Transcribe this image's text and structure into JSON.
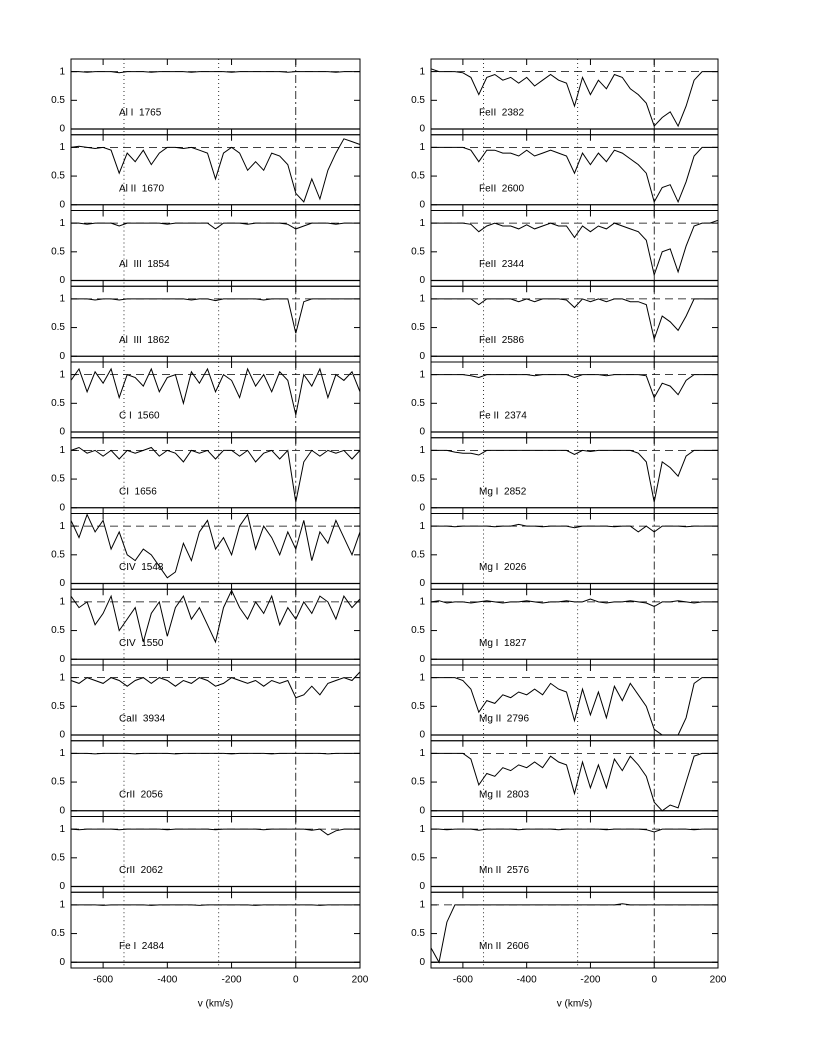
{
  "chart_data": [
    {
      "type": "line",
      "xlabel": "v (km/s)",
      "xlim": [
        -700,
        200
      ],
      "xticks": [
        -600,
        -400,
        -200,
        0,
        200
      ],
      "ylim": [
        -0.1,
        1.22
      ],
      "yticks": [
        0,
        0.5,
        1
      ],
      "continuum": 1,
      "reference_lines": [
        -535,
        -240,
        0
      ],
      "color": "#000000",
      "x": [
        -700,
        -675,
        -650,
        -625,
        -600,
        -575,
        -550,
        -525,
        -500,
        -475,
        -450,
        -425,
        -400,
        -375,
        -350,
        -325,
        -300,
        -275,
        -250,
        -225,
        -200,
        -175,
        -150,
        -125,
        -100,
        -75,
        -50,
        -25,
        0,
        25,
        50,
        75,
        100,
        125,
        150,
        175,
        200
      ],
      "series": [
        {
          "name": "Al I  1765",
          "values": [
            1,
            1,
            0.99,
            1,
            1,
            1,
            0.98,
            1,
            1,
            1,
            0.99,
            1,
            1,
            1,
            1,
            0.99,
            1,
            1,
            1,
            1,
            0.99,
            1,
            1,
            1,
            1,
            1,
            1,
            0.99,
            1,
            1,
            1,
            1,
            1,
            0.99,
            1,
            1,
            1
          ]
        },
        {
          "name": "Al II  1670",
          "values": [
            1,
            1.02,
            1,
            0.98,
            1,
            0.95,
            0.55,
            0.9,
            0.75,
            0.95,
            0.7,
            0.9,
            1,
            1,
            0.98,
            1,
            0.95,
            0.9,
            0.45,
            0.9,
            1,
            0.9,
            0.6,
            0.75,
            0.6,
            0.9,
            0.85,
            0.7,
            0.2,
            0.05,
            0.45,
            0.1,
            0.6,
            0.9,
            1.15,
            1.1,
            1.05
          ]
        },
        {
          "name": "Al  III  1854",
          "values": [
            1,
            1,
            0.98,
            1,
            1,
            1,
            0.95,
            1,
            1,
            1,
            1,
            1,
            0.98,
            1,
            1,
            1,
            1,
            1,
            0.9,
            1,
            1,
            1,
            0.98,
            1,
            1,
            1,
            1,
            0.98,
            0.9,
            0.95,
            1,
            1,
            1,
            0.98,
            1,
            1,
            1
          ]
        },
        {
          "name": "Al  III  1862",
          "values": [
            1,
            1,
            1,
            0.98,
            1,
            1,
            0.98,
            1,
            1,
            1,
            1,
            1,
            1,
            1,
            1,
            0.98,
            1,
            1,
            0.97,
            1,
            1,
            1,
            1,
            1,
            0.98,
            1,
            1,
            1,
            0.4,
            0.95,
            1,
            1,
            1,
            1,
            1,
            1,
            1
          ]
        },
        {
          "name": "C I  1560",
          "values": [
            0.9,
            1.1,
            0.7,
            1.05,
            0.85,
            1.1,
            0.6,
            1,
            0.95,
            0.8,
            1.1,
            0.7,
            0.95,
            1,
            0.5,
            1.05,
            0.85,
            1.1,
            0.7,
            1,
            0.9,
            0.6,
            1.1,
            0.8,
            1,
            0.7,
            1.05,
            0.9,
            0.3,
            1,
            0.8,
            1.1,
            0.6,
            1,
            0.9,
            1.05,
            0.7
          ]
        },
        {
          "name": "CI  1656",
          "values": [
            1,
            1.05,
            0.95,
            1,
            0.9,
            1,
            0.85,
            1,
            0.95,
            1,
            1.05,
            0.9,
            1,
            0.95,
            0.8,
            1,
            0.95,
            1,
            0.85,
            1,
            1,
            0.9,
            1,
            0.8,
            0.95,
            1,
            0.85,
            1,
            0.1,
            0.8,
            1,
            0.9,
            1,
            0.95,
            1,
            0.85,
            1
          ]
        },
        {
          "name": "CIV  1548",
          "values": [
            1.1,
            0.8,
            1.2,
            0.9,
            1.1,
            0.6,
            0.9,
            0.5,
            0.4,
            0.6,
            0.5,
            0.3,
            0.1,
            0.2,
            0.7,
            0.4,
            0.9,
            1.1,
            0.6,
            0.8,
            0.5,
            1,
            1.2,
            0.6,
            1,
            0.8,
            0.5,
            0.9,
            0.6,
            1.1,
            0.4,
            0.9,
            0.7,
            1.1,
            0.8,
            0.5,
            0.9
          ]
        },
        {
          "name": "CIV  1550",
          "values": [
            1.1,
            0.9,
            1,
            0.6,
            0.8,
            1.1,
            0.5,
            0.7,
            0.9,
            0.3,
            0.8,
            1,
            0.4,
            0.9,
            1.1,
            0.7,
            0.9,
            0.6,
            0.3,
            0.9,
            1.2,
            0.9,
            0.7,
            1,
            0.8,
            1.1,
            0.6,
            0.9,
            0.7,
            1,
            0.8,
            1.1,
            1,
            0.7,
            1.1,
            0.9,
            1.05
          ]
        },
        {
          "name": "CaII  3934",
          "values": [
            0.95,
            0.9,
            1,
            0.95,
            0.9,
            1,
            0.95,
            0.85,
            0.95,
            1,
            0.9,
            1,
            0.95,
            0.85,
            0.95,
            0.9,
            1,
            0.95,
            0.85,
            0.9,
            1,
            0.95,
            0.9,
            0.95,
            0.85,
            0.95,
            0.9,
            0.95,
            0.65,
            0.7,
            0.85,
            0.7,
            0.9,
            0.95,
            1,
            0.95,
            1.1
          ]
        },
        {
          "name": "CrII  2056",
          "values": [
            1,
            1,
            1,
            0.99,
            1,
            1,
            1,
            1,
            0.99,
            1,
            1,
            1,
            1,
            0.99,
            1,
            1,
            1,
            1,
            1,
            1,
            0.99,
            1,
            1,
            1,
            1,
            0.99,
            1,
            1,
            1,
            1,
            1,
            1,
            0.99,
            1,
            1,
            1,
            1
          ]
        },
        {
          "name": "CrII  2062",
          "values": [
            1,
            0.99,
            1,
            1,
            1,
            1,
            0.99,
            1,
            1,
            1,
            1,
            1,
            0.99,
            1,
            1,
            1,
            1,
            1,
            0.99,
            1,
            1,
            1,
            1,
            1,
            0.99,
            1,
            1,
            1,
            1,
            1,
            0.98,
            1,
            0.9,
            0.97,
            1,
            1,
            1
          ]
        },
        {
          "name": "Fe I  2484",
          "values": [
            1,
            1,
            1,
            1,
            0.99,
            1,
            1,
            1,
            1,
            1,
            0.99,
            1,
            1,
            1,
            1,
            1,
            0.99,
            1,
            1,
            1,
            1,
            1,
            1,
            0.99,
            1,
            1,
            1,
            1,
            1,
            1,
            1,
            0.99,
            1,
            1,
            1,
            1,
            1
          ]
        }
      ]
    },
    {
      "type": "line",
      "xlabel": "v (km/s)",
      "xlim": [
        -700,
        200
      ],
      "xticks": [
        -600,
        -400,
        -200,
        0,
        200
      ],
      "ylim": [
        -0.1,
        1.22
      ],
      "yticks": [
        0,
        0.5,
        1
      ],
      "continuum": 1,
      "reference_lines": [
        -535,
        -240,
        0
      ],
      "color": "#000000",
      "x": [
        -700,
        -675,
        -650,
        -625,
        -600,
        -575,
        -550,
        -525,
        -500,
        -475,
        -450,
        -425,
        -400,
        -375,
        -350,
        -325,
        -300,
        -275,
        -250,
        -225,
        -200,
        -175,
        -150,
        -125,
        -100,
        -75,
        -50,
        -25,
        0,
        25,
        50,
        75,
        100,
        125,
        150,
        175,
        200
      ],
      "series": [
        {
          "name": "FeII  2382",
          "values": [
            1.05,
            1,
            1,
            1,
            0.98,
            0.9,
            0.6,
            0.9,
            0.95,
            0.85,
            0.9,
            0.8,
            0.9,
            0.75,
            0.85,
            0.95,
            0.85,
            0.8,
            0.4,
            0.9,
            0.6,
            0.85,
            0.7,
            0.95,
            0.9,
            0.7,
            0.6,
            0.45,
            0.05,
            0.2,
            0.3,
            0.05,
            0.4,
            0.85,
            1,
            1,
            1
          ]
        },
        {
          "name": "FeII  2600",
          "values": [
            1,
            1,
            1,
            1,
            1,
            0.95,
            0.75,
            0.95,
            0.95,
            0.9,
            0.9,
            0.85,
            0.95,
            0.85,
            0.9,
            0.95,
            0.9,
            0.85,
            0.55,
            0.9,
            0.7,
            0.9,
            0.75,
            0.95,
            0.9,
            0.8,
            0.7,
            0.55,
            0.05,
            0.3,
            0.35,
            0.05,
            0.4,
            0.85,
            1,
            1,
            1
          ]
        },
        {
          "name": "FeII  2344",
          "values": [
            1,
            1,
            1,
            1,
            1,
            0.98,
            0.85,
            0.95,
            1,
            0.95,
            0.95,
            0.9,
            0.97,
            0.9,
            0.95,
            1,
            0.95,
            0.95,
            0.75,
            0.95,
            0.85,
            0.95,
            0.9,
            1,
            0.95,
            0.9,
            0.85,
            0.7,
            0.1,
            0.5,
            0.55,
            0.15,
            0.6,
            0.95,
            1,
            1,
            1.05
          ]
        },
        {
          "name": "FeII  2586",
          "values": [
            1,
            1,
            1,
            1,
            1,
            1,
            0.9,
            1,
            1,
            1,
            1,
            0.95,
            1,
            0.95,
            1,
            1,
            1,
            0.98,
            0.85,
            1,
            0.95,
            1,
            0.95,
            1,
            1,
            0.95,
            0.95,
            0.9,
            0.3,
            0.7,
            0.6,
            0.45,
            0.7,
            1,
            1,
            1,
            1
          ]
        },
        {
          "name": "Fe II  2374",
          "values": [
            1,
            1,
            1,
            1,
            1,
            0.98,
            0.95,
            1,
            1,
            1,
            1,
            1,
            1,
            0.98,
            1,
            1,
            1,
            1,
            0.95,
            1,
            1,
            1,
            0.98,
            1,
            1,
            1,
            1,
            0.98,
            0.6,
            0.85,
            0.8,
            0.65,
            0.9,
            1,
            1,
            1,
            1
          ]
        },
        {
          "name": "Mg I  2852",
          "values": [
            1,
            1,
            1,
            0.97,
            0.95,
            0.95,
            0.92,
            1,
            1,
            1,
            1,
            1,
            1,
            1,
            1,
            1,
            1,
            1,
            0.93,
            1,
            0.98,
            1,
            1,
            1,
            1,
            1,
            0.95,
            0.8,
            0.1,
            0.8,
            0.7,
            0.55,
            0.9,
            1,
            1,
            1,
            1
          ]
        },
        {
          "name": "Mg I  2026",
          "values": [
            1,
            1,
            1,
            0.99,
            1,
            1,
            1,
            1,
            0.99,
            1,
            1,
            1.03,
            1,
            1,
            0.99,
            1,
            1,
            1,
            0.97,
            1,
            1,
            1,
            1,
            0.99,
            1,
            1,
            0.9,
            1,
            0.9,
            1,
            1,
            1,
            0.99,
            1,
            1,
            1,
            1
          ]
        },
        {
          "name": "Mg I  1827",
          "values": [
            1,
            1.02,
            0.98,
            1,
            1,
            0.98,
            1,
            1.02,
            1,
            0.98,
            1,
            1,
            1.02,
            1,
            0.98,
            1,
            1,
            1.02,
            1,
            1,
            1.05,
            1,
            0.98,
            1,
            1,
            1.02,
            1,
            0.98,
            0.92,
            1,
            1,
            1.02,
            1,
            0.98,
            1,
            1,
            1
          ]
        },
        {
          "name": "Mg II  2796",
          "values": [
            1,
            1,
            1,
            1,
            0.95,
            0.8,
            0.4,
            0.6,
            0.55,
            0.7,
            0.65,
            0.75,
            0.7,
            0.8,
            0.7,
            0.9,
            0.8,
            0.75,
            0.25,
            0.8,
            0.35,
            0.75,
            0.3,
            0.85,
            0.6,
            0.9,
            0.7,
            0.5,
            0.1,
            0,
            0,
            0,
            0.3,
            0.9,
            1,
            1,
            1
          ]
        },
        {
          "name": "Mg II  2803",
          "values": [
            1,
            1,
            1,
            1,
            1,
            0.9,
            0.45,
            0.65,
            0.6,
            0.75,
            0.7,
            0.8,
            0.75,
            0.85,
            0.75,
            0.95,
            0.85,
            0.8,
            0.3,
            0.85,
            0.4,
            0.8,
            0.4,
            0.9,
            0.7,
            0.95,
            0.8,
            0.6,
            0.15,
            0,
            0.1,
            0.05,
            0.5,
            0.95,
            1,
            1,
            1
          ]
        },
        {
          "name": "Mn II  2576",
          "values": [
            1,
            1,
            0.99,
            1,
            1,
            1,
            0.98,
            1,
            1,
            1,
            1,
            0.99,
            1,
            1,
            1,
            1,
            0.99,
            1,
            1,
            1,
            1,
            1,
            0.99,
            1,
            1,
            1,
            1,
            0.99,
            0.95,
            1,
            1,
            1,
            1,
            0.99,
            1,
            1,
            1
          ]
        },
        {
          "name": "Mn II  2606",
          "values": [
            0.25,
            0,
            0.7,
            1,
            1,
            1,
            1,
            1,
            1,
            1,
            1,
            1,
            1,
            1,
            1,
            1,
            1,
            1,
            1,
            1,
            1,
            1,
            1,
            1,
            1.02,
            1,
            1,
            1,
            1,
            1,
            1,
            1,
            1,
            1,
            1,
            1,
            1
          ]
        }
      ]
    }
  ]
}
